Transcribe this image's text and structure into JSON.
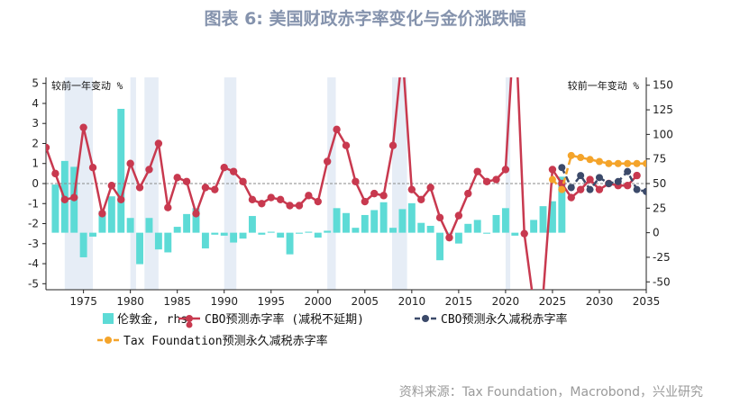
{
  "title": "图表 6: 美国财政赤字率变化与金价涨跌幅",
  "source": "资料来源：Tax Foundation，Macrobond，兴业研究",
  "colors": {
    "bar": "#5ddbd6",
    "cbo_baseline": "#c8394f",
    "cbo_permanent": "#3c4a6a",
    "tax_foundation": "#f4a42b",
    "shade": "#e6edf6",
    "zero": "#8a8a8a"
  },
  "chart_data": {
    "type": "bar+line",
    "title": "图表 6: 美国财政赤字率变化与金价涨跌幅",
    "left_axis_label": "较前一年变动 %",
    "right_axis_label": "较前一年变动 %",
    "xlim": [
      1971,
      2035
    ],
    "ylim_left": [
      -5.3,
      5.3
    ],
    "ylim_right": [
      -58,
      158
    ],
    "x_ticks": [
      1975,
      1980,
      1985,
      1990,
      1995,
      2000,
      2005,
      2010,
      2015,
      2020,
      2025,
      2030,
      2035
    ],
    "y_ticks_left": [
      -5,
      -4,
      -3,
      -2,
      -1,
      0,
      1,
      2,
      3,
      4,
      5
    ],
    "y_ticks_right": [
      -50,
      -25,
      0,
      25,
      50,
      75,
      100,
      125,
      150
    ],
    "shaded_periods": [
      [
        1973,
        1976
      ],
      [
        1980,
        1980.6
      ],
      [
        1981.5,
        1983
      ],
      [
        1990,
        1991.3
      ],
      [
        2001,
        2001.9
      ],
      [
        2007.9,
        2009.5
      ],
      [
        2020,
        2020.5
      ]
    ],
    "legend": [
      {
        "name": "伦敦金, rhs",
        "key": "gold"
      },
      {
        "name": "CBO预测赤字率 (减税不延期)",
        "key": "cbo_baseline"
      },
      {
        "name": "CBO预测永久减税赤字率",
        "key": "cbo_permanent"
      },
      {
        "name": "Tax Foundation预测永久减税赤字率",
        "key": "tax_foundation"
      }
    ],
    "series": [
      {
        "name": "伦敦金, rhs",
        "key": "gold",
        "type": "bar",
        "axis": "right",
        "x": [
          1972,
          1973,
          1974,
          1975,
          1976,
          1977,
          1978,
          1979,
          1980,
          1981,
          1982,
          1983,
          1984,
          1985,
          1986,
          1987,
          1988,
          1989,
          1990,
          1991,
          1992,
          1993,
          1994,
          1995,
          1996,
          1997,
          1998,
          1999,
          2000,
          2001,
          2002,
          2003,
          2004,
          2005,
          2006,
          2007,
          2008,
          2009,
          2010,
          2011,
          2012,
          2013,
          2014,
          2015,
          2016,
          2017,
          2018,
          2019,
          2020,
          2021,
          2022,
          2023,
          2024,
          2025,
          2026
        ],
        "values": [
          49,
          73,
          67,
          -25,
          -4,
          22,
          37,
          126,
          15,
          -32,
          15,
          -17,
          -20,
          6,
          19,
          25,
          -16,
          -2,
          -3,
          -10,
          -6,
          17,
          -2,
          1,
          -5,
          -22,
          -1,
          1,
          -5,
          2,
          25,
          20,
          5,
          18,
          23,
          31,
          5,
          24,
          30,
          10,
          7,
          -28,
          0,
          -11,
          9,
          13,
          -1,
          18,
          25,
          -3,
          0,
          13,
          27,
          32,
          57
        ]
      },
      {
        "name": "CBO预测赤字率 (减税不延期)",
        "key": "cbo_baseline",
        "type": "line",
        "axis": "left",
        "x": [
          1971,
          1972,
          1973,
          1974,
          1975,
          1976,
          1977,
          1978,
          1979,
          1980,
          1981,
          1982,
          1983,
          1984,
          1985,
          1986,
          1987,
          1988,
          1989,
          1990,
          1991,
          1992,
          1993,
          1994,
          1995,
          1996,
          1997,
          1998,
          1999,
          2000,
          2001,
          2002,
          2003,
          2004,
          2005,
          2006,
          2007,
          2008,
          2009,
          2010,
          2011,
          2012,
          2013,
          2014,
          2015,
          2016,
          2017,
          2018,
          2019,
          2020,
          2021,
          2022,
          2023,
          2024,
          2025,
          2026,
          2027,
          2028,
          2029,
          2030,
          2031,
          2032,
          2033,
          2034
        ],
        "values": [
          1.8,
          0.5,
          -0.8,
          -0.7,
          2.8,
          0.8,
          -1.5,
          -0.1,
          -0.8,
          1.0,
          -0.2,
          0.7,
          2.0,
          -1.2,
          0.3,
          0.1,
          -1.5,
          -0.2,
          -0.3,
          0.8,
          0.6,
          0.1,
          -0.8,
          -1.0,
          -0.7,
          -0.8,
          -1.1,
          -1.1,
          -0.6,
          -0.9,
          1.1,
          2.7,
          1.9,
          0.1,
          -0.9,
          -0.5,
          -0.6,
          1.9,
          6.6,
          -0.3,
          -0.8,
          -0.2,
          -1.7,
          -2.7,
          -1.6,
          -0.5,
          0.6,
          0.1,
          0.2,
          0.7,
          8.5,
          -2.5,
          -6.0,
          -5.6,
          0.7,
          0.0,
          -0.7,
          -0.3,
          0.2,
          -0.3,
          0.0,
          -0.1,
          -0.1,
          0.4
        ]
      },
      {
        "name": "CBO预测永久减税赤字率",
        "key": "cbo_permanent",
        "type": "line",
        "axis": "left",
        "x": [
          2026,
          2027,
          2028,
          2029,
          2030,
          2031,
          2032,
          2033,
          2034,
          2035
        ],
        "values": [
          0.8,
          -0.2,
          0.4,
          -0.3,
          0.3,
          0.0,
          0.1,
          0.6,
          -0.3,
          -0.4
        ]
      },
      {
        "name": "Tax Foundation预测永久减税赤字率",
        "key": "tax_foundation",
        "type": "line",
        "axis": "left",
        "x": [
          2025,
          2026,
          2027,
          2028,
          2029,
          2030,
          2031,
          2032,
          2033,
          2034,
          2035
        ],
        "values": [
          0.2,
          -0.3,
          1.4,
          1.3,
          1.2,
          1.1,
          1.0,
          1.0,
          1.0,
          1.0,
          1.0
        ]
      }
    ]
  }
}
